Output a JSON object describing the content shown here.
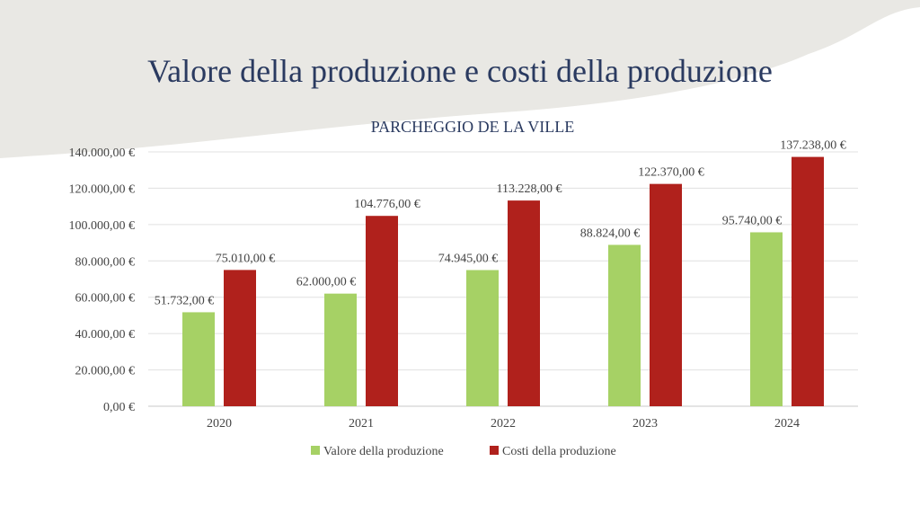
{
  "slide": {
    "title": "Valore della produzione e costi della produzione",
    "colors": {
      "background_band": "#e9e8e4",
      "title": "#2a3a60"
    }
  },
  "chart_data": {
    "type": "bar",
    "title": "PARCHEGGIO DE LA VILLE",
    "categories": [
      "2020",
      "2021",
      "2022",
      "2023",
      "2024"
    ],
    "series": [
      {
        "name": "Valore della produzione",
        "color": "#a6d165",
        "values": [
          51732,
          62000,
          74945,
          88824,
          95740
        ],
        "labels": [
          "51.732,00 €",
          "62.000,00 €",
          "74.945,00 €",
          "88.824,00 €",
          "95.740,00 €"
        ]
      },
      {
        "name": "Costi della produzione",
        "color": "#b0211c",
        "values": [
          75010,
          104776,
          113228,
          122370,
          137238
        ],
        "labels": [
          "75.010,00 €",
          "104.776,00 €",
          "113.228,00 €",
          "122.370,00 €",
          "137.238,00 €"
        ]
      }
    ],
    "ylim": [
      0,
      140000
    ],
    "yticks": [
      0,
      20000,
      40000,
      60000,
      80000,
      100000,
      120000,
      140000
    ],
    "ytick_labels": [
      "0,00 €",
      "20.000,00 €",
      "40.000,00 €",
      "60.000,00 €",
      "80.000,00 €",
      "100.000,00 €",
      "120.000,00 €",
      "140.000,00 €"
    ],
    "xlabel": "",
    "ylabel": "",
    "grid": true,
    "legend_position": "bottom"
  }
}
